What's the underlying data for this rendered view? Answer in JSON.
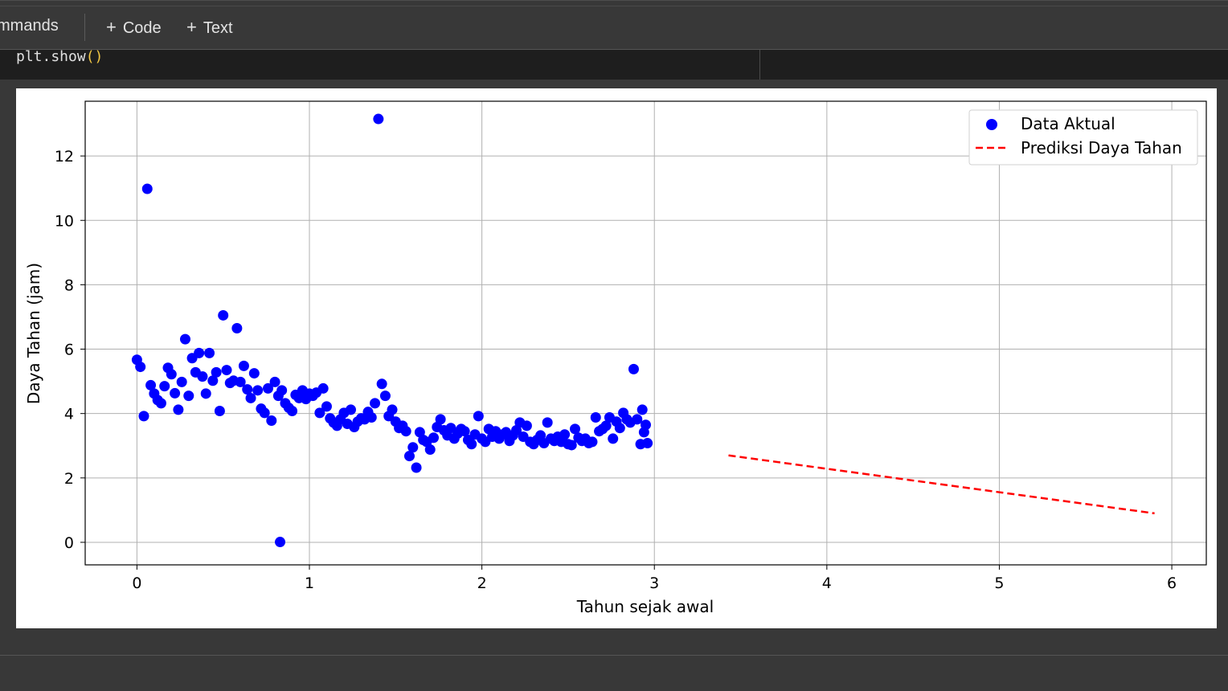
{
  "toolbar": {
    "commands_label": "mmands",
    "add_code_label": "Code",
    "add_text_label": "Text"
  },
  "code": {
    "text": "plt.show",
    "parens": "()"
  },
  "colors": {
    "actual": "#0000ff",
    "prediction": "#ff0000",
    "grid": "#b0b0b0"
  },
  "chart_data": {
    "type": "scatter",
    "xlabel": "Tahun sejak awal",
    "ylabel": "Daya Tahan (jam)",
    "xlim": [
      -0.3,
      6.2
    ],
    "ylim": [
      -0.7,
      13.7
    ],
    "xticks": [
      0,
      1,
      2,
      3,
      4,
      5,
      6
    ],
    "yticks": [
      0,
      2,
      4,
      6,
      8,
      10,
      12
    ],
    "grid": true,
    "legend_position": "top-right",
    "series": [
      {
        "name": "Data Aktual",
        "kind": "scatter",
        "points": [
          [
            0.0,
            5.67
          ],
          [
            0.02,
            5.45
          ],
          [
            0.04,
            3.92
          ],
          [
            0.06,
            10.98
          ],
          [
            0.08,
            4.88
          ],
          [
            0.1,
            4.62
          ],
          [
            0.12,
            4.42
          ],
          [
            0.14,
            4.32
          ],
          [
            0.16,
            4.85
          ],
          [
            0.18,
            5.42
          ],
          [
            0.2,
            5.22
          ],
          [
            0.22,
            4.63
          ],
          [
            0.24,
            4.12
          ],
          [
            0.26,
            4.98
          ],
          [
            0.28,
            6.31
          ],
          [
            0.3,
            4.55
          ],
          [
            0.32,
            5.72
          ],
          [
            0.34,
            5.28
          ],
          [
            0.36,
            5.88
          ],
          [
            0.38,
            5.15
          ],
          [
            0.4,
            4.62
          ],
          [
            0.42,
            5.88
          ],
          [
            0.44,
            5.02
          ],
          [
            0.46,
            5.28
          ],
          [
            0.48,
            4.08
          ],
          [
            0.5,
            7.05
          ],
          [
            0.52,
            5.35
          ],
          [
            0.54,
            4.95
          ],
          [
            0.56,
            5.02
          ],
          [
            0.58,
            6.65
          ],
          [
            0.6,
            4.98
          ],
          [
            0.62,
            5.48
          ],
          [
            0.64,
            4.75
          ],
          [
            0.66,
            4.48
          ],
          [
            0.68,
            5.25
          ],
          [
            0.7,
            4.72
          ],
          [
            0.72,
            4.15
          ],
          [
            0.74,
            4.02
          ],
          [
            0.76,
            4.78
          ],
          [
            0.78,
            3.78
          ],
          [
            0.8,
            4.98
          ],
          [
            0.82,
            4.55
          ],
          [
            0.84,
            4.72
          ],
          [
            0.83,
            0.01
          ],
          [
            0.86,
            4.32
          ],
          [
            0.88,
            4.18
          ],
          [
            0.9,
            4.08
          ],
          [
            0.92,
            4.58
          ],
          [
            0.94,
            4.48
          ],
          [
            0.96,
            4.72
          ],
          [
            0.98,
            4.45
          ],
          [
            1.0,
            4.62
          ],
          [
            1.02,
            4.55
          ],
          [
            1.04,
            4.65
          ],
          [
            1.06,
            4.02
          ],
          [
            1.08,
            4.78
          ],
          [
            1.1,
            4.22
          ],
          [
            1.12,
            3.85
          ],
          [
            1.14,
            3.72
          ],
          [
            1.16,
            3.62
          ],
          [
            1.18,
            3.82
          ],
          [
            1.2,
            4.02
          ],
          [
            1.22,
            3.68
          ],
          [
            1.24,
            4.12
          ],
          [
            1.26,
            3.58
          ],
          [
            1.28,
            3.75
          ],
          [
            1.3,
            3.85
          ],
          [
            1.32,
            3.82
          ],
          [
            1.34,
            4.05
          ],
          [
            1.36,
            3.88
          ],
          [
            1.38,
            4.32
          ],
          [
            1.4,
            13.15
          ],
          [
            1.42,
            4.92
          ],
          [
            1.44,
            4.55
          ],
          [
            1.46,
            3.92
          ],
          [
            1.48,
            4.12
          ],
          [
            1.5,
            3.75
          ],
          [
            1.52,
            3.55
          ],
          [
            1.54,
            3.62
          ],
          [
            1.56,
            3.45
          ],
          [
            1.58,
            2.68
          ],
          [
            1.6,
            2.95
          ],
          [
            1.62,
            2.32
          ],
          [
            1.64,
            3.42
          ],
          [
            1.66,
            3.18
          ],
          [
            1.68,
            3.12
          ],
          [
            1.7,
            2.88
          ],
          [
            1.72,
            3.25
          ],
          [
            1.74,
            3.58
          ],
          [
            1.76,
            3.82
          ],
          [
            1.78,
            3.48
          ],
          [
            1.8,
            3.32
          ],
          [
            1.82,
            3.55
          ],
          [
            1.84,
            3.22
          ],
          [
            1.86,
            3.38
          ],
          [
            1.88,
            3.52
          ],
          [
            1.9,
            3.45
          ],
          [
            1.92,
            3.18
          ],
          [
            1.94,
            3.05
          ],
          [
            1.96,
            3.35
          ],
          [
            1.98,
            3.92
          ],
          [
            2.0,
            3.22
          ],
          [
            2.02,
            3.12
          ],
          [
            2.04,
            3.52
          ],
          [
            2.06,
            3.28
          ],
          [
            2.08,
            3.45
          ],
          [
            2.1,
            3.22
          ],
          [
            2.12,
            3.35
          ],
          [
            2.14,
            3.42
          ],
          [
            2.16,
            3.15
          ],
          [
            2.18,
            3.32
          ],
          [
            2.2,
            3.48
          ],
          [
            2.22,
            3.72
          ],
          [
            2.24,
            3.28
          ],
          [
            2.26,
            3.62
          ],
          [
            2.28,
            3.12
          ],
          [
            2.3,
            3.05
          ],
          [
            2.32,
            3.18
          ],
          [
            2.34,
            3.32
          ],
          [
            2.36,
            3.08
          ],
          [
            2.38,
            3.72
          ],
          [
            2.4,
            3.22
          ],
          [
            2.42,
            3.15
          ],
          [
            2.44,
            3.28
          ],
          [
            2.46,
            3.12
          ],
          [
            2.48,
            3.35
          ],
          [
            2.5,
            3.05
          ],
          [
            2.52,
            3.02
          ],
          [
            2.54,
            3.52
          ],
          [
            2.56,
            3.25
          ],
          [
            2.58,
            3.15
          ],
          [
            2.6,
            3.22
          ],
          [
            2.62,
            3.08
          ],
          [
            2.64,
            3.12
          ],
          [
            2.66,
            3.88
          ],
          [
            2.68,
            3.45
          ],
          [
            2.7,
            3.52
          ],
          [
            2.72,
            3.62
          ],
          [
            2.74,
            3.88
          ],
          [
            2.76,
            3.22
          ],
          [
            2.78,
            3.75
          ],
          [
            2.8,
            3.55
          ],
          [
            2.82,
            4.02
          ],
          [
            2.84,
            3.82
          ],
          [
            2.86,
            3.72
          ],
          [
            2.88,
            5.38
          ],
          [
            2.9,
            3.82
          ],
          [
            2.92,
            3.05
          ],
          [
            2.93,
            4.12
          ],
          [
            2.94,
            3.42
          ],
          [
            2.95,
            3.65
          ],
          [
            2.96,
            3.08
          ]
        ]
      },
      {
        "name": "Prediksi Daya Tahan",
        "kind": "line",
        "style": "dashed",
        "points": [
          [
            3.43,
            2.7
          ],
          [
            5.9,
            0.9
          ]
        ]
      }
    ]
  }
}
